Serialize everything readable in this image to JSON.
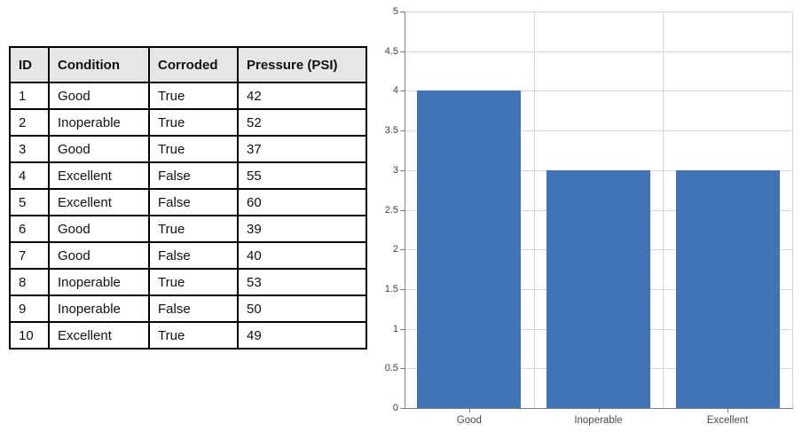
{
  "table": {
    "headers": [
      "ID",
      "Condition",
      "Corroded",
      "Pressure (PSI)"
    ],
    "rows": [
      [
        "1",
        "Good",
        "True",
        "42"
      ],
      [
        "2",
        "Inoperable",
        "True",
        "52"
      ],
      [
        "3",
        "Good",
        "True",
        "37"
      ],
      [
        "4",
        "Excellent",
        "False",
        "55"
      ],
      [
        "5",
        "Excellent",
        "False",
        "60"
      ],
      [
        "6",
        "Good",
        "True",
        "39"
      ],
      [
        "7",
        "Good",
        "False",
        "40"
      ],
      [
        "8",
        "Inoperable",
        "True",
        "53"
      ],
      [
        "9",
        "Inoperable",
        "False",
        "50"
      ],
      [
        "10",
        "Excellent",
        "True",
        "49"
      ]
    ],
    "header_bg": "#e7e6e6",
    "border_color": "#000000"
  },
  "chart_data": {
    "type": "bar",
    "categories": [
      "Good",
      "Inoperable",
      "Excellent"
    ],
    "values": [
      4,
      3,
      3
    ],
    "title": "",
    "xlabel": "",
    "ylabel": "",
    "ylim": [
      0,
      5
    ],
    "ytick_step": 0.5,
    "yticks": [
      0,
      0.5,
      1,
      1.5,
      2,
      2.5,
      3,
      3.5,
      4,
      4.5,
      5
    ],
    "ytick_labels": [
      "0",
      "0.5",
      "1",
      "1.5",
      "2",
      "2.5",
      "3",
      "3.5",
      "4",
      "4.5",
      "5"
    ],
    "grid": true,
    "legend_position": "none",
    "bar_color": "#4173b8",
    "gridline_color": "#d9d9d9",
    "axis_color": "#808080",
    "tick_label_color": "#404040"
  }
}
